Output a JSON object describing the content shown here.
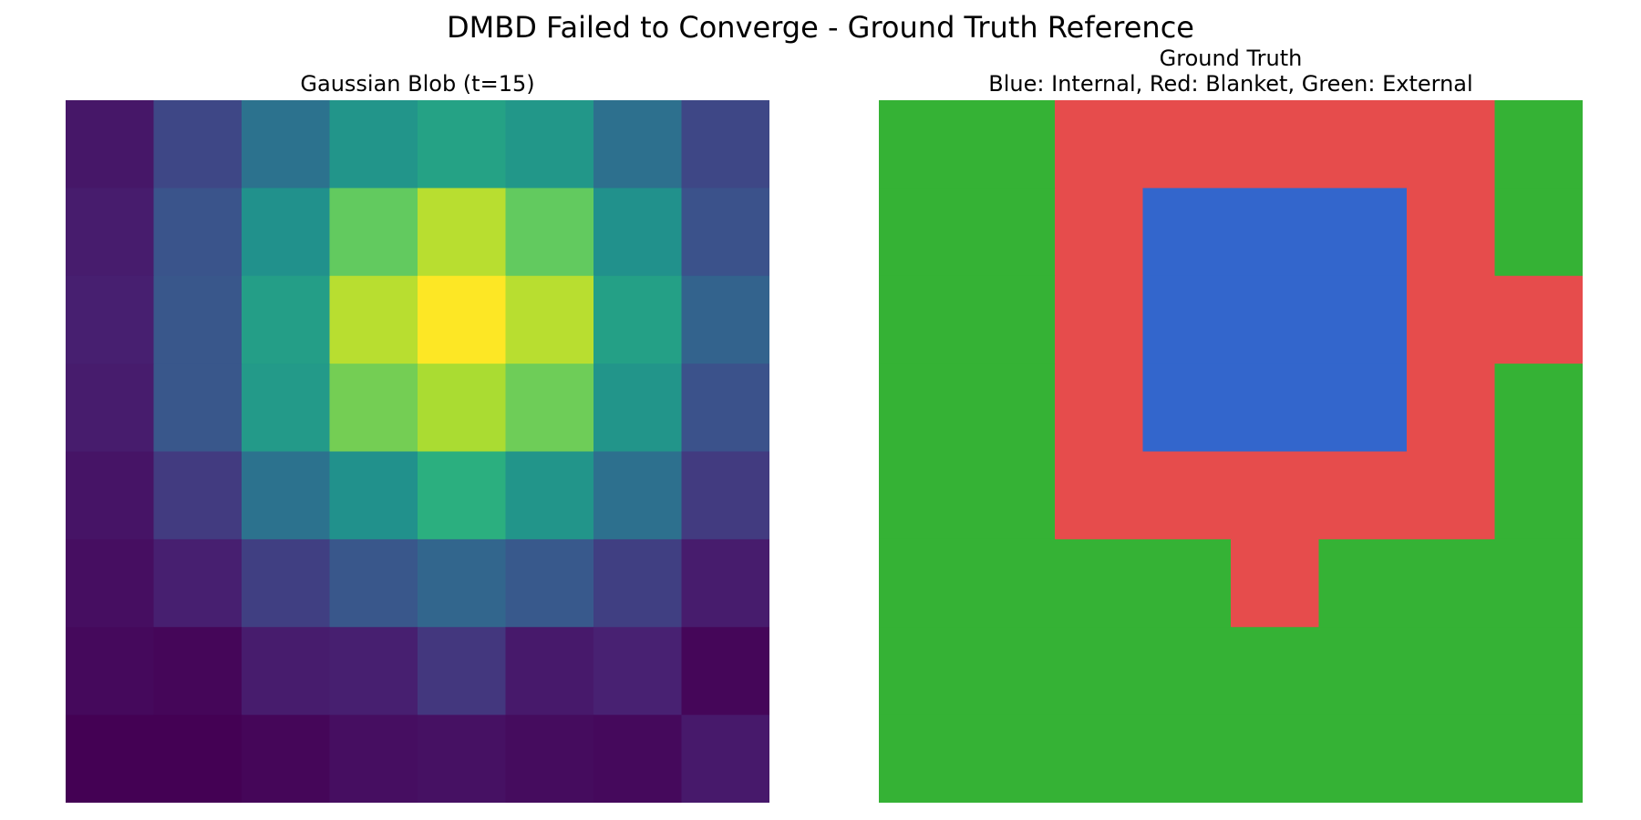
{
  "suptitle": "DMBD Failed to Converge - Ground Truth Reference",
  "chart_data": [
    {
      "type": "heatmap",
      "title": "Gaussian Blob (t=15)",
      "colormap": "viridis",
      "axes": "off",
      "grid": false,
      "vmin": 0.0,
      "vmax": 1.0,
      "rows": 8,
      "cols": 8,
      "values": [
        [
          0.08,
          0.22,
          0.38,
          0.52,
          0.58,
          0.53,
          0.37,
          0.22
        ],
        [
          0.1,
          0.26,
          0.5,
          0.76,
          0.9,
          0.76,
          0.5,
          0.25
        ],
        [
          0.11,
          0.27,
          0.56,
          0.9,
          1.0,
          0.9,
          0.57,
          0.32
        ],
        [
          0.1,
          0.27,
          0.54,
          0.79,
          0.88,
          0.78,
          0.52,
          0.25
        ],
        [
          0.07,
          0.19,
          0.38,
          0.5,
          0.64,
          0.52,
          0.37,
          0.19
        ],
        [
          0.05,
          0.11,
          0.2,
          0.27,
          0.33,
          0.28,
          0.2,
          0.1
        ],
        [
          0.03,
          0.02,
          0.1,
          0.11,
          0.18,
          0.09,
          0.12,
          0.02
        ],
        [
          0.0,
          0.0,
          0.02,
          0.05,
          0.06,
          0.04,
          0.03,
          0.09
        ]
      ]
    },
    {
      "type": "heatmap",
      "title": "Ground Truth",
      "subtitle": "Blue: Internal, Red: Blanket, Green: External",
      "axes": "off",
      "grid": false,
      "rows": 8,
      "cols": 8,
      "categories": {
        "0": {
          "color": "#35b235"
        },
        "1": {
          "color": "#e64c4c"
        },
        "2": {
          "color": "#3366cc"
        }
      },
      "values": [
        [
          0,
          0,
          1,
          1,
          1,
          1,
          1,
          0
        ],
        [
          0,
          0,
          1,
          2,
          2,
          2,
          1,
          0
        ],
        [
          0,
          0,
          1,
          2,
          2,
          2,
          1,
          1
        ],
        [
          0,
          0,
          1,
          2,
          2,
          2,
          1,
          0
        ],
        [
          0,
          0,
          1,
          1,
          1,
          1,
          1,
          0
        ],
        [
          0,
          0,
          0,
          0,
          1,
          0,
          0,
          0
        ],
        [
          0,
          0,
          0,
          0,
          0,
          0,
          0,
          0
        ],
        [
          0,
          0,
          0,
          0,
          0,
          0,
          0,
          0
        ]
      ]
    }
  ]
}
